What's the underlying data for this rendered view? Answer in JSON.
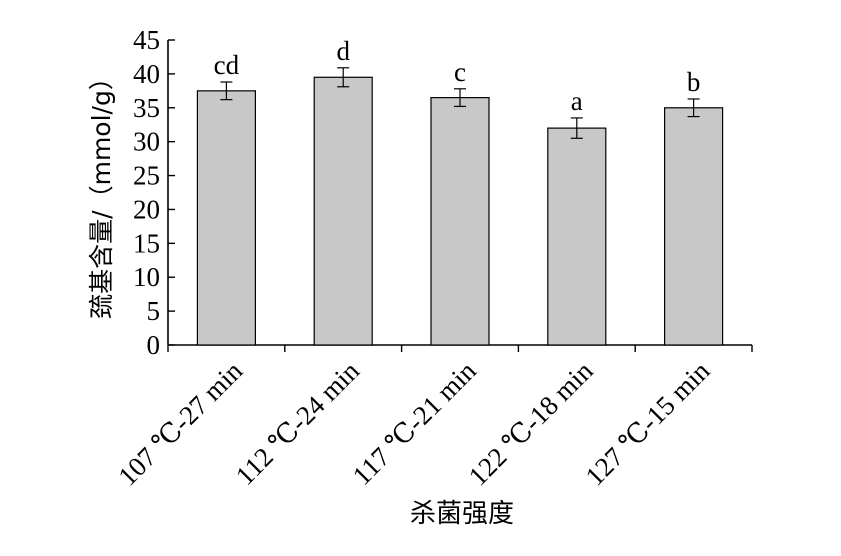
{
  "chart_data": {
    "type": "bar",
    "title": "",
    "xlabel": "杀菌强度",
    "ylabel": "巯基含量/（mmol/g）",
    "ylim": [
      0,
      45
    ],
    "yticks": [
      0,
      5,
      10,
      15,
      20,
      25,
      30,
      35,
      40,
      45
    ],
    "grid": false,
    "categories": [
      "107 ℃-27 min",
      "112 ℃-24 min",
      "117 ℃-21 min",
      "122 ℃-18 min",
      "127 ℃-15 min"
    ],
    "values": [
      37.5,
      39.5,
      36.5,
      32.0,
      35.0
    ],
    "errors": [
      1.3,
      1.4,
      1.3,
      1.5,
      1.3
    ],
    "significance_letters": [
      "cd",
      "d",
      "c",
      "a",
      "b"
    ],
    "bar_color": "#c8c8c8"
  }
}
